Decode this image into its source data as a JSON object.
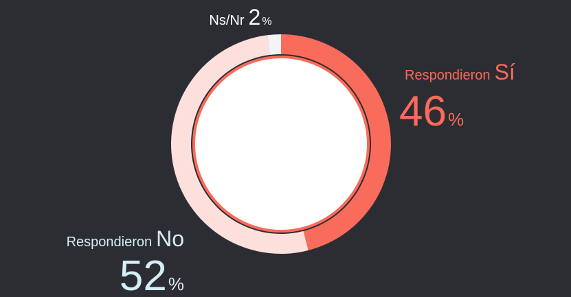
{
  "chart_data": {
    "type": "pie",
    "label_prefix": "Respondieron",
    "unit": "%",
    "categories": [
      "Sí",
      "No",
      "Ns/Nr"
    ],
    "values": [
      46,
      52,
      2
    ],
    "colors": [
      "#f96b5a",
      "#fde0dc",
      "#f4f4f4"
    ],
    "label_colors": [
      "#f96b5a",
      "#d3eef4",
      "#ffffff"
    ]
  }
}
